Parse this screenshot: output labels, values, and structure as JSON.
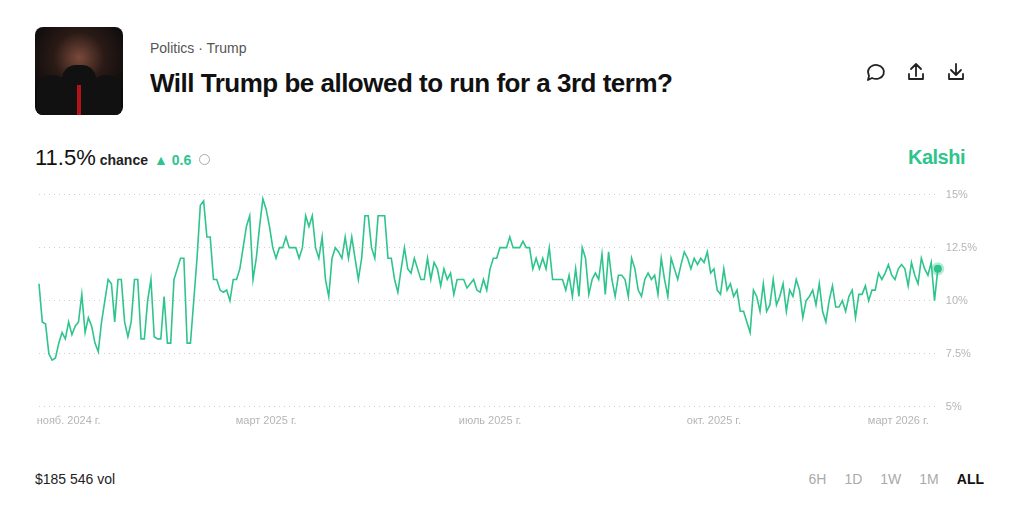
{
  "header": {
    "breadcrumb": "Politics · Trump",
    "headline": "11.5%",
    "headline_word": "chance",
    "change": "▲ 0.6",
    "brand": "Kalshi"
  },
  "footer": {
    "volume": "$185 546 vol",
    "ranges": [
      "6H",
      "1D",
      "1W",
      "1M",
      "ALL"
    ],
    "active_range": "ALL"
  },
  "chart_data": {
    "type": "line",
    "title": "Will Trump be allowed to run for a 3rd term?",
    "categories": [
      null,
      null,
      null,
      null,
      null,
      null,
      null,
      null,
      null,
      "нояб. 2024 г.",
      null,
      null,
      null,
      null,
      null,
      null,
      null,
      null,
      null,
      null,
      null,
      null,
      null,
      null,
      null,
      null,
      null,
      null,
      null,
      null,
      null,
      null,
      null,
      null,
      null,
      null,
      null,
      null,
      null,
      null,
      null,
      null,
      null,
      null,
      null,
      null,
      null,
      null,
      null,
      null,
      null,
      null,
      null,
      null,
      null,
      null,
      null,
      null,
      null,
      null,
      null,
      null,
      null,
      null,
      null,
      null,
      null,
      null,
      null,
      "март 2025 г.",
      null,
      null,
      null,
      null,
      null,
      null,
      null,
      null,
      null,
      null,
      null,
      null,
      null,
      null,
      null,
      null,
      null,
      null,
      null,
      null,
      null,
      null,
      null,
      null,
      null,
      null,
      null,
      null,
      null,
      null,
      null,
      null,
      null,
      null,
      null,
      null,
      null,
      null,
      null,
      null,
      null,
      null,
      null,
      null,
      null,
      null,
      null,
      null,
      null,
      null,
      null,
      null,
      null,
      null,
      null,
      null,
      null,
      null,
      null,
      null,
      null,
      null,
      null,
      null,
      null,
      null,
      null,
      "июль 2025 г.",
      null,
      null,
      null,
      null,
      null,
      null,
      null,
      null,
      null,
      null,
      null,
      null,
      null,
      null,
      null,
      null,
      null,
      null,
      null,
      null,
      null,
      null,
      null,
      null,
      null,
      null,
      null,
      null,
      null,
      null,
      null,
      null,
      null,
      null,
      null,
      null,
      null,
      null,
      null,
      null,
      null,
      null,
      null,
      null,
      null,
      null,
      null,
      null,
      null,
      null,
      null,
      null,
      null,
      null,
      null,
      null,
      null,
      null,
      null,
      null,
      null,
      null,
      null,
      null,
      null,
      null,
      null,
      "окт. 2025 г.",
      null,
      null,
      null,
      null,
      null,
      null,
      null,
      null,
      null,
      null,
      null,
      null,
      null,
      null,
      null,
      null,
      null,
      null,
      null,
      null,
      null,
      null,
      null,
      null,
      null,
      null,
      null,
      null,
      null,
      null,
      null,
      null,
      null,
      null,
      null,
      null,
      null,
      null,
      null,
      null,
      null,
      null,
      null,
      null,
      null,
      null,
      null,
      null,
      null,
      null,
      null,
      null,
      null,
      null,
      null,
      "март 2026 г.",
      null,
      null,
      null,
      null,
      null,
      null,
      null,
      null,
      null,
      null,
      null,
      null
    ],
    "values": [
      10.8,
      9.0,
      8.9,
      7.5,
      7.2,
      7.3,
      8.0,
      8.5,
      8.2,
      9.0,
      8.4,
      8.8,
      9.0,
      10.3,
      8.5,
      9.2,
      8.8,
      8.0,
      7.6,
      9.0,
      10.0,
      11.0,
      10.8,
      9.0,
      11.0,
      11.0,
      9.0,
      8.3,
      9.0,
      11.0,
      11.0,
      8.2,
      8.2,
      10.0,
      11.0,
      8.3,
      8.2,
      8.2,
      10.2,
      8.0,
      8.0,
      11.0,
      11.5,
      12.0,
      12.0,
      8.0,
      8.0,
      10.0,
      12.0,
      14.5,
      14.7,
      13.0,
      13.0,
      11.0,
      11.0,
      10.5,
      10.4,
      10.5,
      10.0,
      11.0,
      11.0,
      11.5,
      12.5,
      13.5,
      14.0,
      11.0,
      12.0,
      13.5,
      14.8,
      14.3,
      13.5,
      12.5,
      12.0,
      12.5,
      12.5,
      13.0,
      12.5,
      12.5,
      12.5,
      12.0,
      12.5,
      14.0,
      13.5,
      14.0,
      12.5,
      12.0,
      13.0,
      11.0,
      10.2,
      12.0,
      12.5,
      12.3,
      12.0,
      13.0,
      12.0,
      13.0,
      12.0,
      11.0,
      12.0,
      14.0,
      14.0,
      12.5,
      12.0,
      14.0,
      14.0,
      14.0,
      12.0,
      12.0,
      11.0,
      10.4,
      11.5,
      12.5,
      11.5,
      11.3,
      12.0,
      11.5,
      11.0,
      11.0,
      12.0,
      11.0,
      11.8,
      11.5,
      10.7,
      11.5,
      11.0,
      11.3,
      10.3,
      11.0,
      11.0,
      11.0,
      10.6,
      10.8,
      11.0,
      10.5,
      10.4,
      11.0,
      10.5,
      11.5,
      12.0,
      12.0,
      12.5,
      12.5,
      12.5,
      13.0,
      12.5,
      12.5,
      12.5,
      12.8,
      12.5,
      12.5,
      11.5,
      12.0,
      11.5,
      12.0,
      11.5,
      12.5,
      11.0,
      11.0,
      11.0,
      11.0,
      10.5,
      11.2,
      10.2,
      11.5,
      10.2,
      12.5,
      12.0,
      10.3,
      11.0,
      11.3,
      11.0,
      12.2,
      10.3,
      12.3,
      11.0,
      10.2,
      11.2,
      11.2,
      11.0,
      10.2,
      12.0,
      11.5,
      10.5,
      10.2,
      11.0,
      11.3,
      11.0,
      11.2,
      10.3,
      12.0,
      11.0,
      10.2,
      12.0,
      11.5,
      11.0,
      11.7,
      12.3,
      12.0,
      11.5,
      12.0,
      11.7,
      12.0,
      11.8,
      12.3,
      11.3,
      11.5,
      10.5,
      10.3,
      11.5,
      10.5,
      10.8,
      10.2,
      10.5,
      9.5,
      9.5,
      9.0,
      8.5,
      10.5,
      10.2,
      9.5,
      10.8,
      9.5,
      9.8,
      11.0,
      9.8,
      10.2,
      10.8,
      9.5,
      10.5,
      10.2,
      11.0,
      10.5,
      9.2,
      10.0,
      10.2,
      10.5,
      9.8,
      10.8,
      9.5,
      9.0,
      10.0,
      10.7,
      9.7,
      9.7,
      10.0,
      9.5,
      10.2,
      10.5,
      9.2,
      10.3,
      10.3,
      10.7,
      10.0,
      10.5,
      10.5,
      11.3,
      11.0,
      11.3,
      11.7,
      11.2,
      11.0,
      11.5,
      11.7,
      11.5,
      10.7,
      11.8,
      11.2,
      10.8,
      12.0,
      11.5,
      11.2,
      11.8,
      10.0,
      11.5
    ],
    "color": "#2ec48c",
    "ylim": [
      5,
      15
    ],
    "yticks": [
      {
        "value": 5,
        "label": "5%"
      },
      {
        "value": 7.5,
        "label": "7.5%"
      },
      {
        "value": 10,
        "label": "10%"
      },
      {
        "value": 12.5,
        "label": "12.5%"
      },
      {
        "value": 15,
        "label": "15%"
      }
    ],
    "grid": true
  }
}
